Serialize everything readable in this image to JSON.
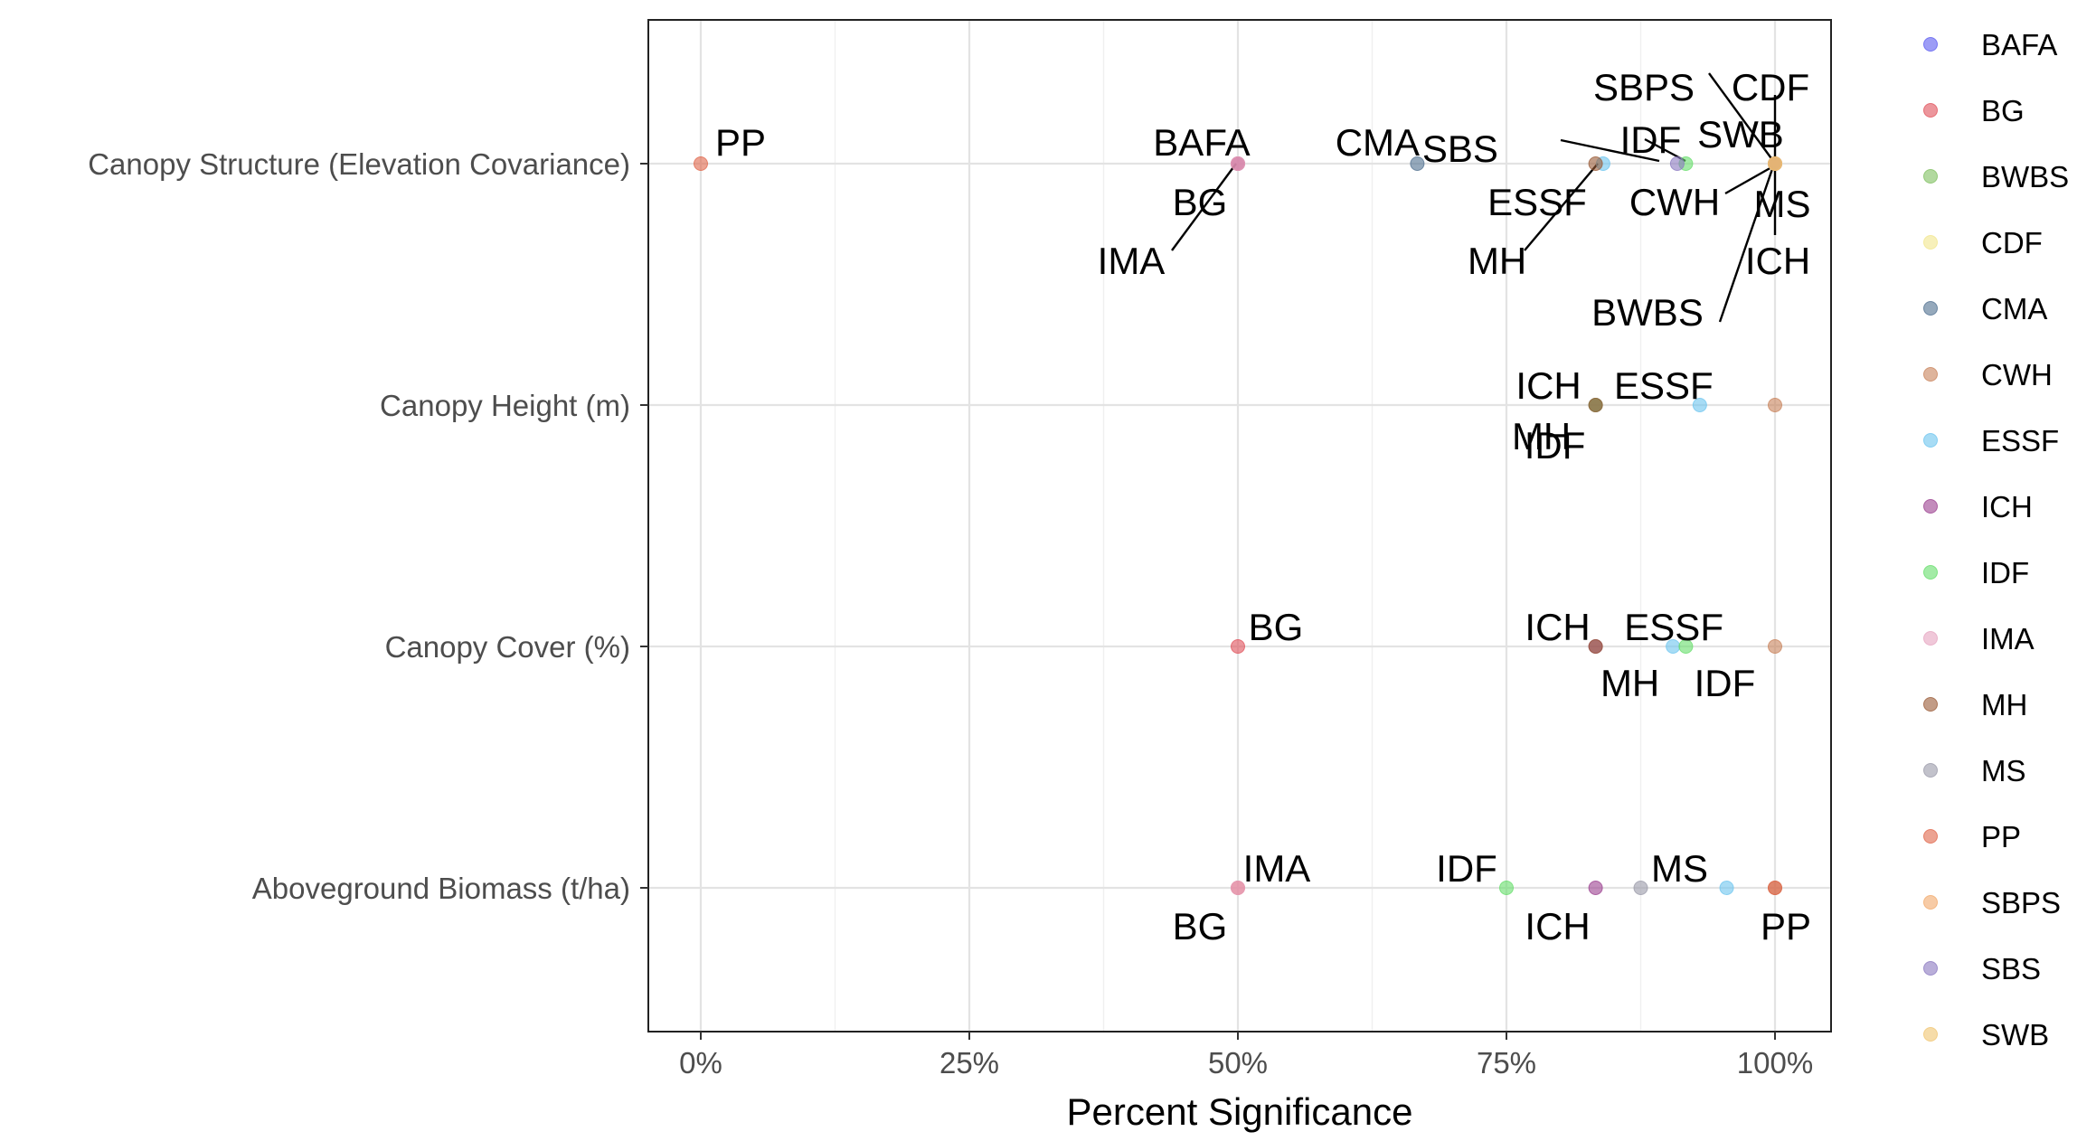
{
  "chart_data": {
    "type": "scatter",
    "title": "",
    "xlabel": "Percent Significance",
    "ylabel": "",
    "xlim": [
      -0.05,
      1.05
    ],
    "xticks": [
      {
        "value": 0,
        "label": "0%"
      },
      {
        "value": 0.25,
        "label": "25%"
      },
      {
        "value": 0.5,
        "label": "50%"
      },
      {
        "value": 0.75,
        "label": "75%"
      },
      {
        "value": 1.0,
        "label": "100%"
      }
    ],
    "categories": [
      "Canopy Structure (Elevation Covariance)",
      "Canopy Height (m)",
      "Canopy Cover (%)",
      "Aboveground Biomass (t/ha)"
    ],
    "grid": true,
    "legend_position": "right",
    "legend": [
      {
        "name": "BAFA",
        "color": "#5b5bf0"
      },
      {
        "name": "BG",
        "color": "#e0505a"
      },
      {
        "name": "BWBS",
        "color": "#7fbf5f"
      },
      {
        "name": "CDF",
        "color": "#f2e68c"
      },
      {
        "name": "CMA",
        "color": "#4f6f8f"
      },
      {
        "name": "CWH",
        "color": "#c8825a"
      },
      {
        "name": "ESSF",
        "color": "#6cc4ef"
      },
      {
        "name": "ICH",
        "color": "#9b3f8f"
      },
      {
        "name": "IDF",
        "color": "#66dd6a"
      },
      {
        "name": "IMA",
        "color": "#e6a4c0"
      },
      {
        "name": "MH",
        "color": "#9a5a36"
      },
      {
        "name": "MS",
        "color": "#9a9aa8"
      },
      {
        "name": "PP",
        "color": "#e0654a"
      },
      {
        "name": "SBPS",
        "color": "#f2a86a"
      },
      {
        "name": "SBS",
        "color": "#8a78c0"
      },
      {
        "name": "SWB",
        "color": "#f0c470"
      }
    ],
    "series": [
      {
        "name": "BAFA",
        "points": [
          {
            "category": "Canopy Structure (Elevation Covariance)",
            "x": 0.5
          }
        ]
      },
      {
        "name": "BG",
        "points": [
          {
            "category": "Canopy Structure (Elevation Covariance)",
            "x": 0.5
          },
          {
            "category": "Canopy Cover (%)",
            "x": 0.5
          },
          {
            "category": "Aboveground Biomass (t/ha)",
            "x": 0.5
          }
        ]
      },
      {
        "name": "BWBS",
        "points": [
          {
            "category": "Canopy Structure (Elevation Covariance)",
            "x": 1.0
          }
        ]
      },
      {
        "name": "CDF",
        "points": [
          {
            "category": "Canopy Structure (Elevation Covariance)",
            "x": 1.0
          }
        ]
      },
      {
        "name": "CMA",
        "points": [
          {
            "category": "Canopy Structure (Elevation Covariance)",
            "x": 0.667
          }
        ]
      },
      {
        "name": "CWH",
        "points": [
          {
            "category": "Canopy Structure (Elevation Covariance)",
            "x": 1.0
          },
          {
            "category": "Canopy Height (m)",
            "x": 1.0
          },
          {
            "category": "Canopy Cover (%)",
            "x": 1.0
          },
          {
            "category": "Aboveground Biomass (t/ha)",
            "x": 1.0
          }
        ]
      },
      {
        "name": "ESSF",
        "points": [
          {
            "category": "Canopy Structure (Elevation Covariance)",
            "x": 0.84
          },
          {
            "category": "Canopy Height (m)",
            "x": 0.93
          },
          {
            "category": "Canopy Cover (%)",
            "x": 0.905
          },
          {
            "category": "Aboveground Biomass (t/ha)",
            "x": 0.955
          }
        ]
      },
      {
        "name": "ICH",
        "points": [
          {
            "category": "Canopy Structure (Elevation Covariance)",
            "x": 1.0
          },
          {
            "category": "Canopy Height (m)",
            "x": 0.833
          },
          {
            "category": "Canopy Cover (%)",
            "x": 0.833
          },
          {
            "category": "Aboveground Biomass (t/ha)",
            "x": 0.833
          }
        ]
      },
      {
        "name": "IDF",
        "points": [
          {
            "category": "Canopy Structure (Elevation Covariance)",
            "x": 0.917
          },
          {
            "category": "Canopy Height (m)",
            "x": 0.833
          },
          {
            "category": "Canopy Cover (%)",
            "x": 0.917
          },
          {
            "category": "Aboveground Biomass (t/ha)",
            "x": 0.75
          }
        ]
      },
      {
        "name": "IMA",
        "points": [
          {
            "category": "Canopy Structure (Elevation Covariance)",
            "x": 0.5
          },
          {
            "category": "Aboveground Biomass (t/ha)",
            "x": 0.5
          }
        ]
      },
      {
        "name": "MH",
        "points": [
          {
            "category": "Canopy Structure (Elevation Covariance)",
            "x": 0.833
          },
          {
            "category": "Canopy Height (m)",
            "x": 0.833
          },
          {
            "category": "Canopy Cover (%)",
            "x": 0.833
          }
        ]
      },
      {
        "name": "MS",
        "points": [
          {
            "category": "Canopy Structure (Elevation Covariance)",
            "x": 1.0
          },
          {
            "category": "Aboveground Biomass (t/ha)",
            "x": 0.875
          }
        ]
      },
      {
        "name": "PP",
        "points": [
          {
            "category": "Canopy Structure (Elevation Covariance)",
            "x": 0.0
          },
          {
            "category": "Aboveground Biomass (t/ha)",
            "x": 1.0
          }
        ]
      },
      {
        "name": "SBPS",
        "points": [
          {
            "category": "Canopy Structure (Elevation Covariance)",
            "x": 1.0
          }
        ]
      },
      {
        "name": "SBS",
        "points": [
          {
            "category": "Canopy Structure (Elevation Covariance)",
            "x": 0.909
          }
        ]
      },
      {
        "name": "SWB",
        "points": [
          {
            "category": "Canopy Structure (Elevation Covariance)",
            "x": 1.0
          }
        ]
      }
    ]
  }
}
